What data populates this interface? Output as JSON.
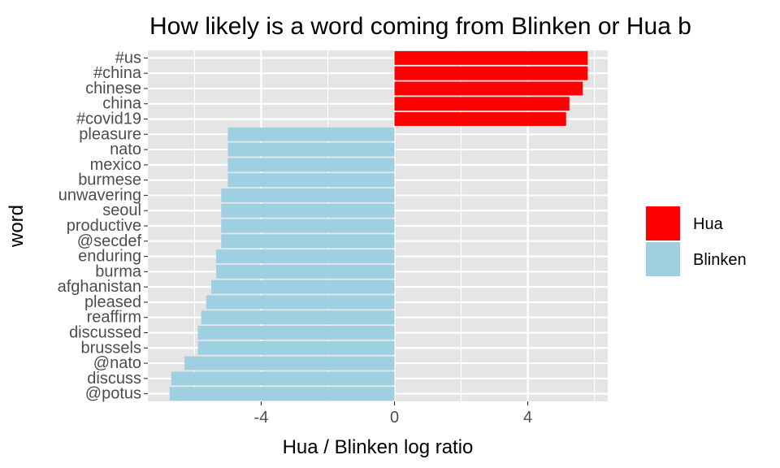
{
  "chart_data": {
    "type": "bar",
    "orientation": "horizontal",
    "title": "How likely is a word coming from Blinken or Hua b",
    "xlabel": "Hua / Blinken log ratio",
    "ylabel": "word",
    "xlim": [
      -7.4,
      6.4
    ],
    "xticks": [
      -4,
      0,
      4
    ],
    "xtick_labels": [
      "-4",
      "0",
      "4"
    ],
    "grid": true,
    "legend_position": "right",
    "legend": [
      {
        "name": "Hua",
        "color": "#ff0000"
      },
      {
        "name": "Blinken",
        "color": "#9fd0e1"
      }
    ],
    "categories": [
      "#us",
      "#china",
      "chinese",
      "china",
      "#covid19",
      "pleasure",
      "nato",
      "mexico",
      "burmese",
      "unwavering",
      "seoul",
      "productive",
      "@secdef",
      "enduring",
      "burma",
      "afghanistan",
      "pleased",
      "reaffirm",
      "discussed",
      "brussels",
      "@nato",
      "discuss",
      "@potus"
    ],
    "values": [
      5.8,
      5.8,
      5.65,
      5.25,
      5.15,
      -5.0,
      -5.0,
      -5.0,
      -5.0,
      -5.2,
      -5.2,
      -5.2,
      -5.2,
      -5.35,
      -5.35,
      -5.5,
      -5.65,
      -5.8,
      -5.9,
      -5.9,
      -6.3,
      -6.7,
      -6.75
    ],
    "groups": [
      "Hua",
      "Hua",
      "Hua",
      "Hua",
      "Hua",
      "Blinken",
      "Blinken",
      "Blinken",
      "Blinken",
      "Blinken",
      "Blinken",
      "Blinken",
      "Blinken",
      "Blinken",
      "Blinken",
      "Blinken",
      "Blinken",
      "Blinken",
      "Blinken",
      "Blinken",
      "Blinken",
      "Blinken",
      "Blinken"
    ]
  }
}
